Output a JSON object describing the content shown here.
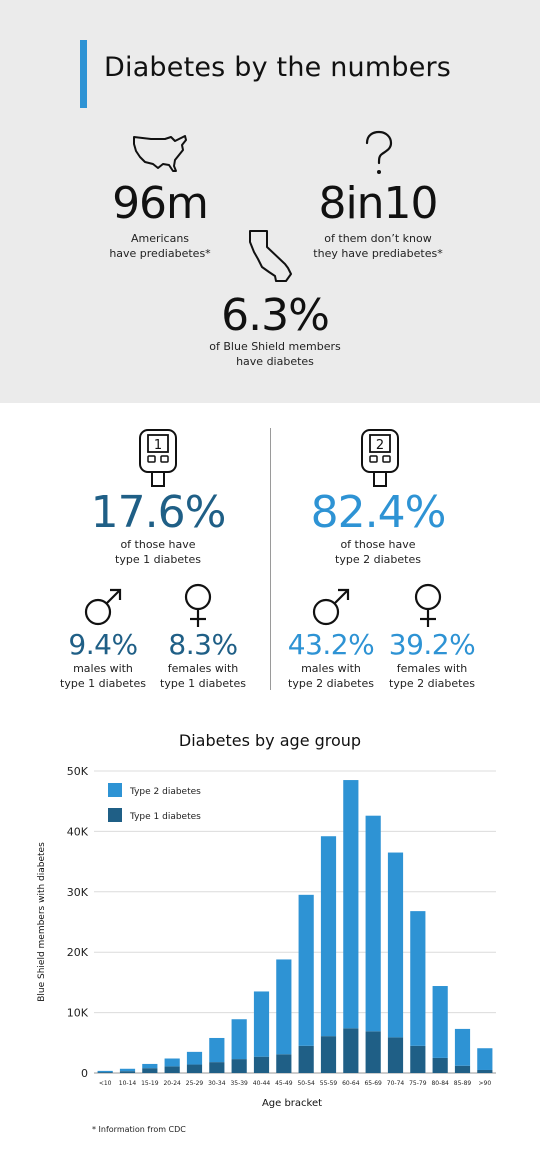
{
  "header": {
    "title": "Diabetes by the numbers"
  },
  "stats": {
    "prediabetes": {
      "value": "96m",
      "caption": [
        "Americans",
        "have prediabetes*"
      ]
    },
    "unaware": {
      "value": "8in10",
      "caption": [
        "of them don’t know",
        "they have prediabetes*"
      ]
    },
    "members": {
      "value": "6.3%",
      "caption": [
        "of Blue Shield members",
        "have diabetes"
      ]
    }
  },
  "types": {
    "type1": {
      "meter_number": "1",
      "value": "17.6%",
      "caption": [
        "of those have",
        "type 1 diabetes"
      ],
      "males": {
        "value": "9.4%",
        "caption": [
          "males with",
          "type 1 diabetes"
        ]
      },
      "females": {
        "value": "8.3%",
        "caption": [
          "females with",
          "type 1 diabetes"
        ]
      }
    },
    "type2": {
      "meter_number": "2",
      "value": "82.4%",
      "caption": [
        "of those have",
        "type 2 diabetes"
      ],
      "males": {
        "value": "43.2%",
        "caption": [
          "males with",
          "type 2 diabetes"
        ]
      },
      "females": {
        "value": "39.2%",
        "caption": [
          "females with",
          "type 2 diabetes"
        ]
      }
    }
  },
  "icons": {
    "us_map": "us-map-icon",
    "question": "question-mark-icon",
    "california": "california-icon",
    "meter": "glucose-meter-icon",
    "male": "male-symbol-icon",
    "female": "female-symbol-icon"
  },
  "colors": {
    "accent": "#2e93d4",
    "type1": "#1f5f86",
    "type2": "#2e93d4",
    "panel": "#ebebeb"
  },
  "chart_data": {
    "type": "bar",
    "stacked": true,
    "title": "Diabetes by age group",
    "xlabel": "Age bracket",
    "ylabel": "Blue Shield members with diabetes",
    "ylim": [
      0,
      50000
    ],
    "yticks": [
      0,
      10000,
      20000,
      30000,
      40000,
      50000
    ],
    "ytick_labels": [
      "0",
      "10K",
      "20K",
      "30K",
      "40K",
      "50K"
    ],
    "grid": true,
    "legend": "top-left",
    "categories": [
      "<10",
      "10-14",
      "15-19",
      "20-24",
      "25-29",
      "30-34",
      "35-39",
      "40-44",
      "45-49",
      "50-54",
      "55-59",
      "60-64",
      "65-69",
      "70-74",
      "75-79",
      "80-84",
      "85-89",
      ">90"
    ],
    "series": [
      {
        "name": "Type 1 diabetes",
        "color": "#1f5f86",
        "values": [
          150,
          300,
          800,
          1100,
          1400,
          1800,
          2300,
          2700,
          3100,
          4500,
          6100,
          7400,
          6900,
          5900,
          4500,
          2500,
          1200,
          500
        ]
      },
      {
        "name": "Type 2 diabetes",
        "color": "#2e93d4",
        "values": [
          200,
          400,
          700,
          1300,
          2100,
          4000,
          6600,
          10800,
          15700,
          25000,
          33100,
          41100,
          35700,
          30600,
          22300,
          11900,
          6100,
          3600
        ]
      }
    ]
  },
  "footnote": "* Information from CDC"
}
